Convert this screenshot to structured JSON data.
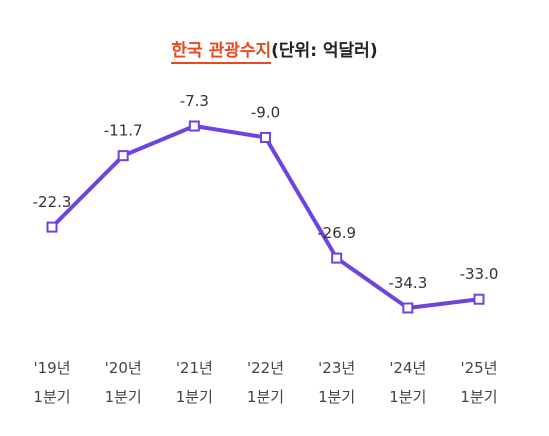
{
  "title": {
    "accent": "한국 관광수지",
    "rest": "(단위: 억달러)"
  },
  "colors": {
    "line": "#6e44e0",
    "marker_fill": "#ffffff",
    "accent": "#e8491d"
  },
  "chart_data": {
    "type": "line",
    "title": "한국 관광수지(단위: 억달러)",
    "categories": [
      [
        "'19년",
        "1분기"
      ],
      [
        "'20년",
        "1분기"
      ],
      [
        "'21년",
        "1분기"
      ],
      [
        "'22년",
        "1분기"
      ],
      [
        "'23년",
        "1분기"
      ],
      [
        "'24년",
        "1분기"
      ],
      [
        "'25년",
        "1분기"
      ]
    ],
    "values": [
      -22.3,
      -11.7,
      -7.3,
      -9.0,
      -26.9,
      -34.3,
      -33.0
    ],
    "labels": [
      "-22.3",
      "-11.7",
      "-7.3",
      "-9.0",
      "-26.9",
      "-34.3",
      "-33.0"
    ],
    "grid": false,
    "legend": "none"
  }
}
